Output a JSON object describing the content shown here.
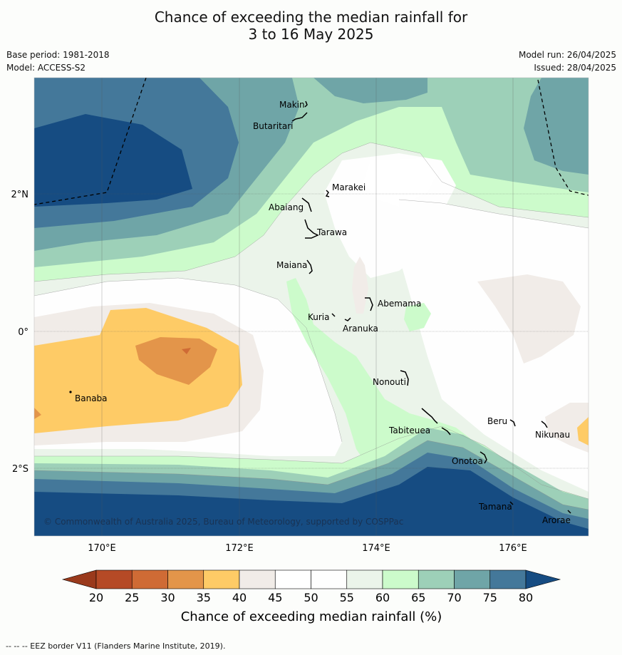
{
  "title_line1": "Chance of exceeding the median rainfall for",
  "title_line2": "3 to 16 May 2025",
  "meta_left": [
    "Base period: 1981-2018",
    "Model: ACCESS-S2"
  ],
  "meta_right": [
    "Model run: 26/04/2025",
    "Issued: 28/04/2025"
  ],
  "lat_labels": [
    "2°N",
    "0°",
    "2°S"
  ],
  "lon_labels": [
    "170°E",
    "172°E",
    "174°E",
    "176°E"
  ],
  "places": [
    "Makin",
    "Butaritari",
    "Marakei",
    "Abaiang",
    "Tarawa",
    "Maiana",
    "Abemama",
    "Kuria",
    "Aranuka",
    "Banaba",
    "Nonouti",
    "Beru",
    "Tabiteuea",
    "Nikunau",
    "Onotoa",
    "Tamana",
    "Arorae"
  ],
  "copyright": "© Commonwealth of Australia 2025, Bureau of Meteorology, supported by COSPPac",
  "colorbar": {
    "ticks": [
      "20",
      "25",
      "30",
      "35",
      "40",
      "45",
      "50",
      "55",
      "60",
      "65",
      "70",
      "75",
      "80"
    ],
    "colors": [
      "#9a3a1c",
      "#b54a26",
      "#cf6b35",
      "#e3954a",
      "#fecb66",
      "#f1ece8",
      "#ffffff",
      "#fefefe",
      "#ebf4ea",
      "#ccfbcb",
      "#9dd0b8",
      "#6fa5a7",
      "#44789a",
      "#164c82"
    ],
    "title": "Chance of exceeding median rainfall (%)"
  },
  "footer": "--  --  -- EEZ border V11 (Flanders Marine Institute, 2019)."
}
